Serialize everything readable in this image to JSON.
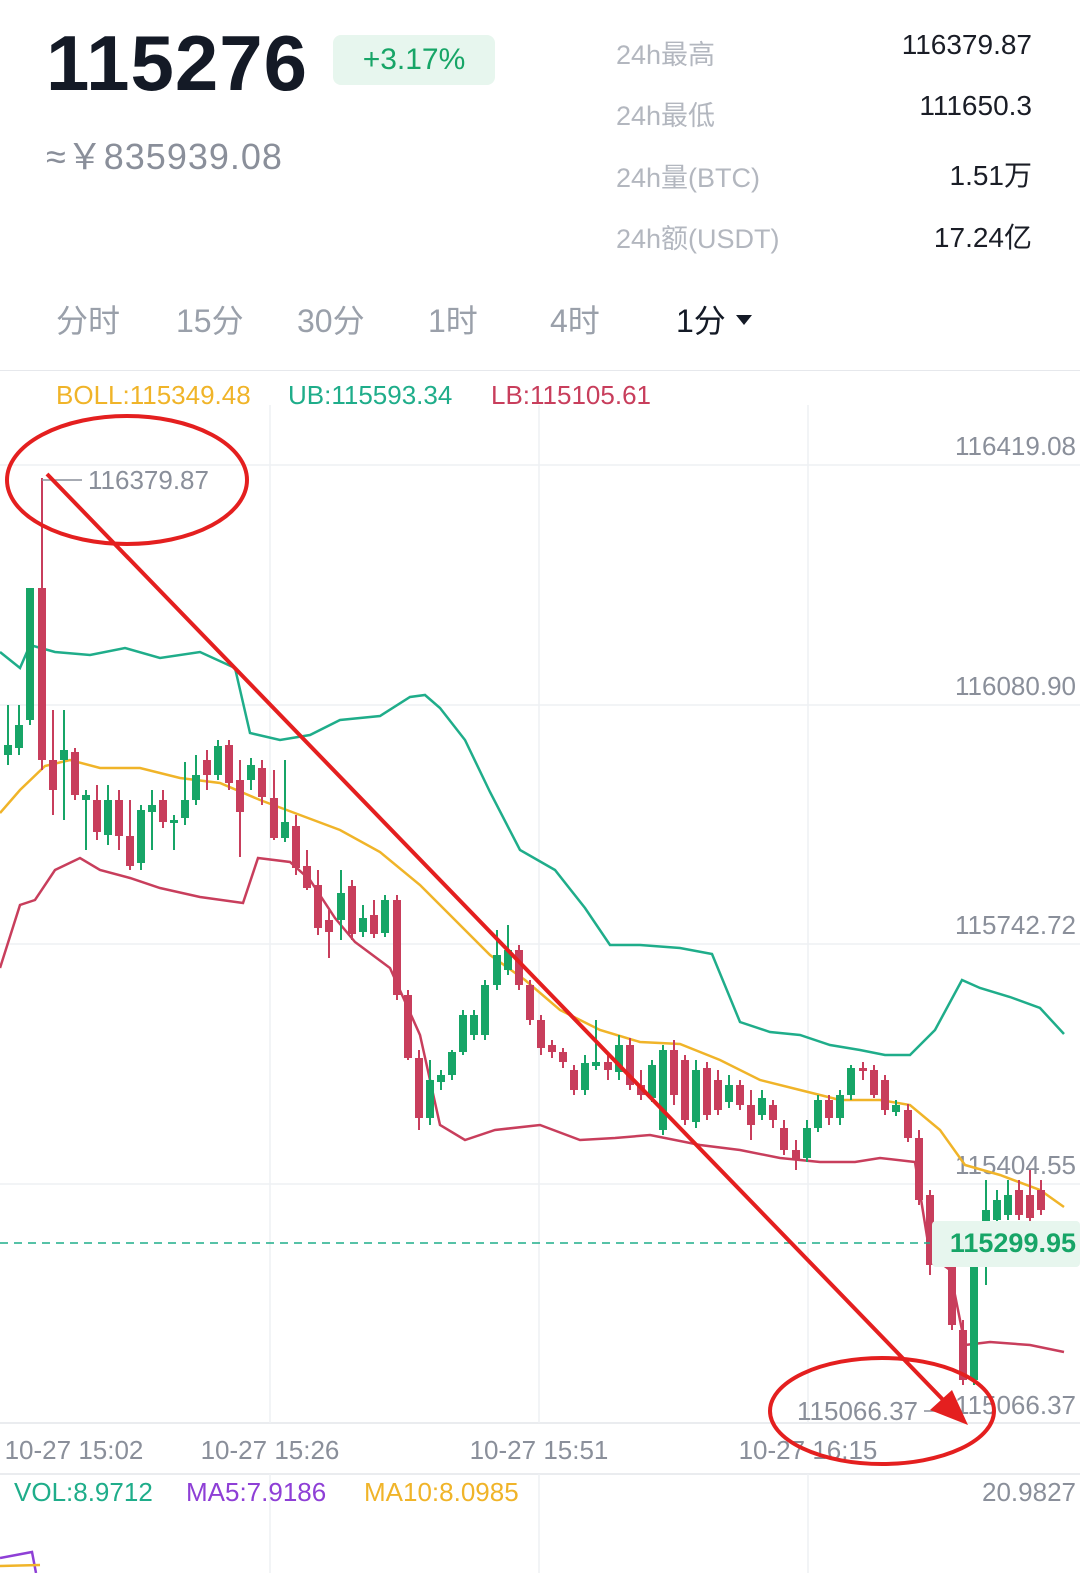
{
  "ticker": {
    "price": "115276",
    "change": "+3.17%",
    "cny": "≈￥835939.08",
    "colors": {
      "up": "#17a567",
      "down": "#c83e5c",
      "badge_bg": "#e7f6ee"
    }
  },
  "stats": [
    {
      "label": "24h最高",
      "value": "116379.87"
    },
    {
      "label": "24h最低",
      "value": "111650.3"
    },
    {
      "label": "24h量(BTC)",
      "value": "1.51万"
    },
    {
      "label": "24h额(USDT)",
      "value": "17.24亿"
    }
  ],
  "tabs": [
    {
      "label": "分时",
      "active": false
    },
    {
      "label": "15分",
      "active": false
    },
    {
      "label": "30分",
      "active": false
    },
    {
      "label": "1时",
      "active": false
    },
    {
      "label": "4时",
      "active": false
    },
    {
      "label": "1分",
      "active": true
    }
  ],
  "indicators": {
    "boll": "BOLL:115349.48",
    "ub": "UB:115593.34",
    "lb": "LB:115105.61"
  },
  "chart": {
    "price_axis": [
      "116419.08",
      "116080.90",
      "115742.72",
      "115404.55"
    ],
    "current_price": "115299.95",
    "high_label": "116379.87",
    "low_label": "115066.37",
    "low_axis_label": "115066.37",
    "time_axis": [
      "10-27 15:02",
      "10-27 15:26",
      "10-27 15:51",
      "10-27 16:15"
    ],
    "annotation": "downtrend-arrow-with-circled-high-and-low"
  },
  "chart_data": {
    "type": "candlestick",
    "y_range": [
      115066.37,
      116419.08
    ],
    "x": [
      "10-27 15:02",
      "10-27 15:26",
      "10-27 15:51",
      "10-27 16:15"
    ],
    "series": [
      {
        "name": "BOLL",
        "value": 115349.48
      },
      {
        "name": "UB",
        "value": 115593.34
      },
      {
        "name": "LB",
        "value": 115105.61
      }
    ],
    "high": 116379.87,
    "low": 115066.37,
    "last": 115299.95
  },
  "volume": {
    "vol": "VOL:8.9712",
    "ma5": "MA5:7.9186",
    "ma10": "MA10:8.0985",
    "max": "20.9827"
  }
}
